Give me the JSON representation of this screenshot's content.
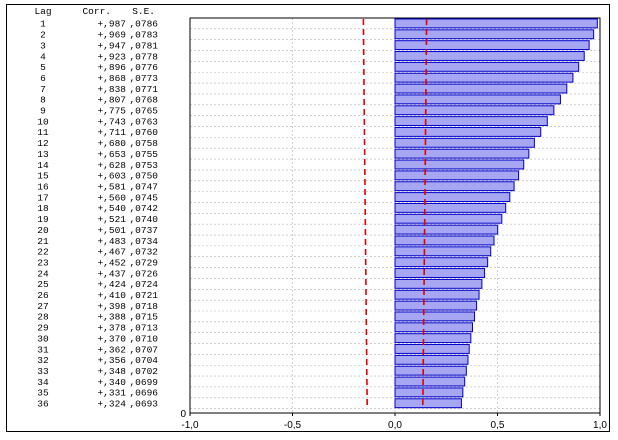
{
  "chart_data": {
    "type": "bar",
    "orientation": "horizontal",
    "table_headers": [
      "Lag",
      "Corr.",
      "S.E."
    ],
    "lags": [
      1,
      2,
      3,
      4,
      5,
      6,
      7,
      8,
      9,
      10,
      11,
      12,
      13,
      14,
      15,
      16,
      17,
      18,
      19,
      20,
      21,
      22,
      23,
      24,
      25,
      26,
      27,
      28,
      29,
      30,
      31,
      32,
      33,
      34,
      35,
      36
    ],
    "corr_labels": [
      "+,987",
      "+,969",
      "+,947",
      "+,923",
      "+,896",
      "+,868",
      "+,838",
      "+,807",
      "+,775",
      "+,743",
      "+,711",
      "+,680",
      "+,653",
      "+,628",
      "+,603",
      "+,581",
      "+,560",
      "+,540",
      "+,521",
      "+,501",
      "+,483",
      "+,467",
      "+,452",
      "+,437",
      "+,424",
      "+,410",
      "+,398",
      "+,388",
      "+,378",
      "+,370",
      "+,362",
      "+,356",
      "+,348",
      "+,340",
      "+,331",
      "+,324"
    ],
    "se_labels": [
      ",0786",
      ",0783",
      ",0781",
      ",0778",
      ",0776",
      ",0773",
      ",0771",
      ",0768",
      ",0765",
      ",0763",
      ",0760",
      ",0758",
      ",0755",
      ",0753",
      ",0750",
      ",0747",
      ",0745",
      ",0742",
      ",0740",
      ",0737",
      ",0734",
      ",0732",
      ",0729",
      ",0726",
      ",0724",
      ",0721",
      ",0718",
      ",0715",
      ",0713",
      ",0710",
      ",0707",
      ",0704",
      ",0702",
      ",0699",
      ",0696",
      ",0693"
    ],
    "values": [
      0.987,
      0.969,
      0.947,
      0.923,
      0.896,
      0.868,
      0.838,
      0.807,
      0.775,
      0.743,
      0.711,
      0.68,
      0.653,
      0.628,
      0.603,
      0.581,
      0.56,
      0.54,
      0.521,
      0.501,
      0.483,
      0.467,
      0.452,
      0.437,
      0.424,
      0.41,
      0.398,
      0.388,
      0.378,
      0.37,
      0.362,
      0.356,
      0.348,
      0.34,
      0.331,
      0.324
    ],
    "std_errors": [
      0.0786,
      0.0783,
      0.0781,
      0.0778,
      0.0776,
      0.0773,
      0.0771,
      0.0768,
      0.0765,
      0.0763,
      0.076,
      0.0758,
      0.0755,
      0.0753,
      0.075,
      0.0747,
      0.0745,
      0.0742,
      0.074,
      0.0737,
      0.0734,
      0.0732,
      0.0729,
      0.0726,
      0.0724,
      0.0721,
      0.0718,
      0.0715,
      0.0713,
      0.071,
      0.0707,
      0.0704,
      0.0702,
      0.0699,
      0.0696,
      0.0693
    ],
    "confidence_multiplier": 1.96,
    "xlim": [
      -1.0,
      1.0
    ],
    "x_ticks": [
      -1.0,
      -0.5,
      0.0,
      0.5,
      1.0
    ],
    "x_tick_labels": [
      "-1,0",
      "-0,5",
      "0,0",
      "0,5",
      "1,0"
    ],
    "y_zero_label": "0",
    "grid": true,
    "colors": {
      "bar_fill": "#a6a6f2",
      "bar_stroke": "#0000cc",
      "confidence_line": "#e00000",
      "grid": "#b4b4b4"
    }
  }
}
